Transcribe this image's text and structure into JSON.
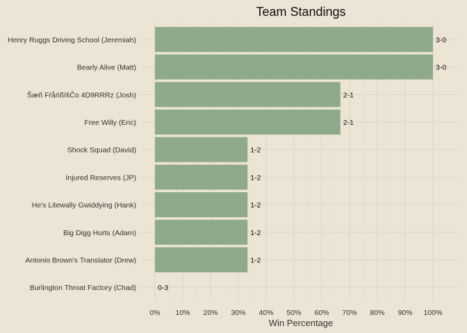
{
  "chart_data": {
    "type": "bar",
    "orientation": "horizontal",
    "title": "Team Standings",
    "xlabel": "Win Percentage",
    "ylabel": "",
    "xlim": [
      0,
      100
    ],
    "x_ticks": [
      "0%",
      "10%",
      "20%",
      "30%",
      "40%",
      "50%",
      "60%",
      "70%",
      "80%",
      "90%",
      "100%"
    ],
    "categories": [
      "Henry Ruggs Driving School (Jeremiah)",
      "Bearly Alive (Matt)",
      "Šæñ FŕåńßïšČo 4D9RRRz (Josh)",
      "Free Willy (Eric)",
      "Shock Squad (David)",
      "Injured Reserves (JP)",
      "He's Litewally Gwiddying (Hank)",
      "Big Digg Hurts (Adam)",
      "Antonio Brown's Translator (Drew)",
      "Burlington Throat Factory (Chad)"
    ],
    "values": [
      100,
      100,
      66.7,
      66.7,
      33.3,
      33.3,
      33.3,
      33.3,
      33.3,
      0
    ],
    "data_labels": [
      "3-0",
      "3-0",
      "2-1",
      "2-1",
      "1-2",
      "1-2",
      "1-2",
      "1-2",
      "1-2",
      "0-3"
    ],
    "bar_color": "#8faa8a",
    "background_color": "#ece4d4",
    "grid": true,
    "legend": "none"
  }
}
